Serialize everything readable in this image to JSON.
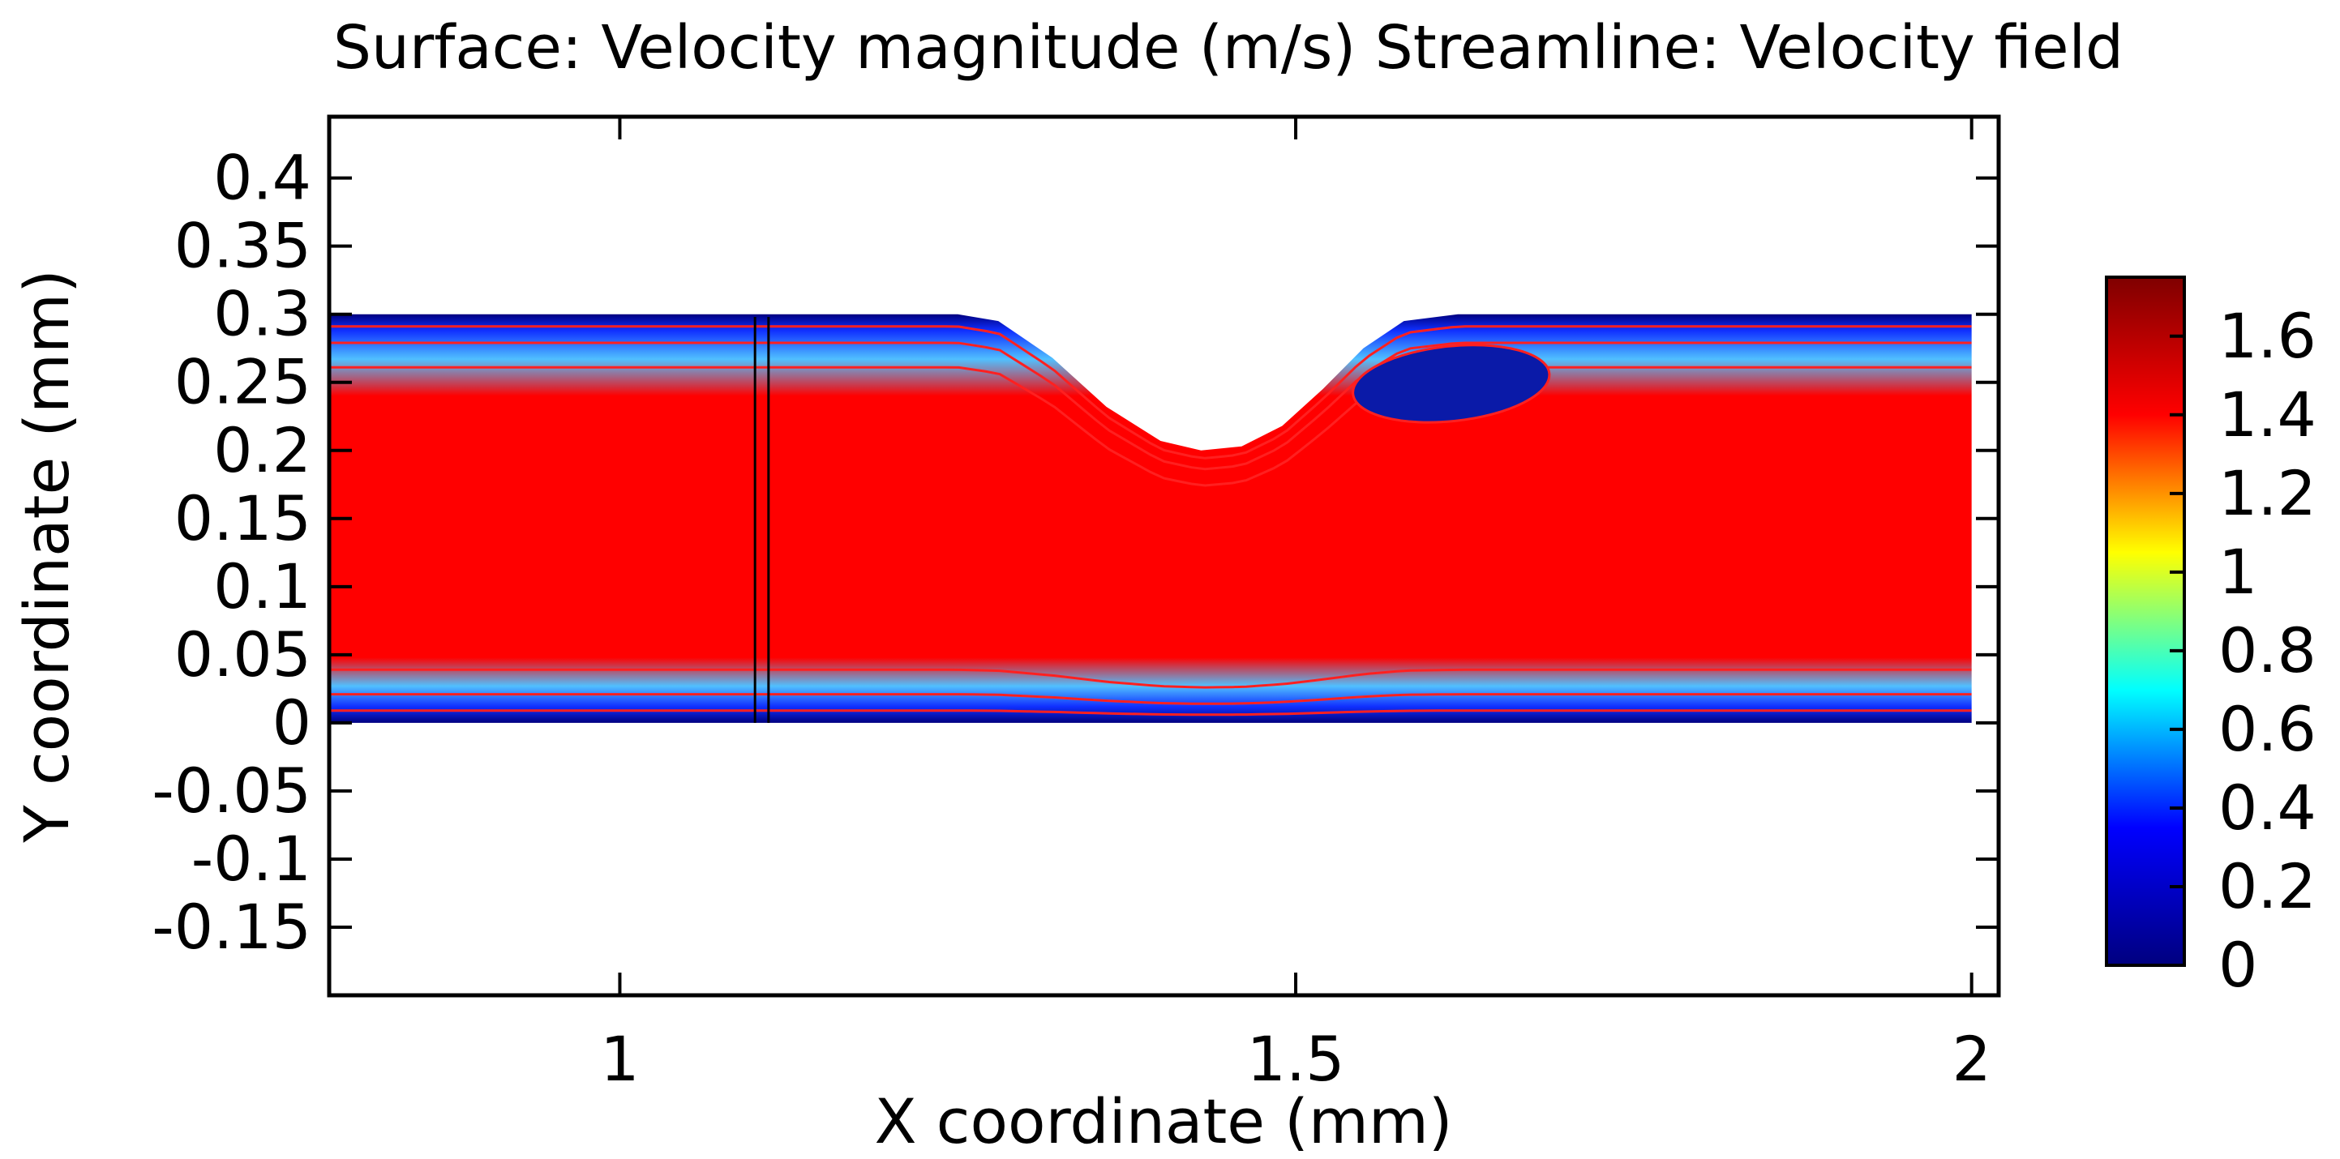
{
  "chart_data": {
    "type": "heatmap",
    "title": "Surface: Velocity magnitude (m/s)  Streamline: Velocity field",
    "xlabel": "X coordinate (mm)",
    "ylabel": "Y coordinate (mm)",
    "xlim": [
      0.785,
      2.02
    ],
    "ylim": [
      -0.2,
      0.445
    ],
    "x_ticks": [
      {
        "value": 1,
        "label": "1"
      },
      {
        "value": 1.5,
        "label": "1.5"
      },
      {
        "value": 2,
        "label": "2"
      }
    ],
    "y_ticks": [
      {
        "value": 0.4,
        "label": "0.4"
      },
      {
        "value": 0.35,
        "label": "0.35"
      },
      {
        "value": 0.3,
        "label": "0.3"
      },
      {
        "value": 0.25,
        "label": "0.25"
      },
      {
        "value": 0.2,
        "label": "0.2"
      },
      {
        "value": 0.15,
        "label": "0.15"
      },
      {
        "value": 0.1,
        "label": "0.1"
      },
      {
        "value": 0.05,
        "label": "0.05"
      },
      {
        "value": 0,
        "label": "0"
      },
      {
        "value": -0.05,
        "label": "-0.05"
      },
      {
        "value": -0.1,
        "label": "-0.1"
      },
      {
        "value": -0.15,
        "label": "-0.15"
      }
    ],
    "domain": {
      "x_range": [
        0.785,
        2.0
      ],
      "y_range": [
        0,
        0.3
      ],
      "top_wall_indentation": [
        {
          "x": 0.785,
          "y": 0.3
        },
        {
          "x": 1.25,
          "y": 0.3
        },
        {
          "x": 1.28,
          "y": 0.295
        },
        {
          "x": 1.32,
          "y": 0.268
        },
        {
          "x": 1.36,
          "y": 0.232
        },
        {
          "x": 1.4,
          "y": 0.207
        },
        {
          "x": 1.43,
          "y": 0.2
        },
        {
          "x": 1.46,
          "y": 0.203
        },
        {
          "x": 1.49,
          "y": 0.218
        },
        {
          "x": 1.52,
          "y": 0.245
        },
        {
          "x": 1.55,
          "y": 0.275
        },
        {
          "x": 1.58,
          "y": 0.295
        },
        {
          "x": 1.62,
          "y": 0.3
        },
        {
          "x": 2.0,
          "y": 0.3
        }
      ],
      "vertical_marker_x": [
        1.1,
        1.11
      ]
    },
    "recirculation_vortex": {
      "center_x": 1.615,
      "center_y": 0.249,
      "rx": 0.073,
      "ry": 0.0275
    },
    "colorbar": {
      "range": [
        0,
        1.75
      ],
      "ticks": [
        {
          "value": 1.6,
          "label": "1.6"
        },
        {
          "value": 1.4,
          "label": "1.4"
        },
        {
          "value": 1.2,
          "label": "1.2"
        },
        {
          "value": 1,
          "label": "1"
        },
        {
          "value": 0.8,
          "label": "0.8"
        },
        {
          "value": 0.6,
          "label": "0.6"
        },
        {
          "value": 0.4,
          "label": "0.4"
        },
        {
          "value": 0.2,
          "label": "0.2"
        },
        {
          "value": 0,
          "label": "0"
        }
      ],
      "stops": [
        "#00007f",
        "#0000ff",
        "#00ffff",
        "#ffff00",
        "#ff0000",
        "#7f0000"
      ]
    },
    "field_color": "#ff0000",
    "wall_color": "#00007f",
    "streamline_color": "#ff2020"
  }
}
